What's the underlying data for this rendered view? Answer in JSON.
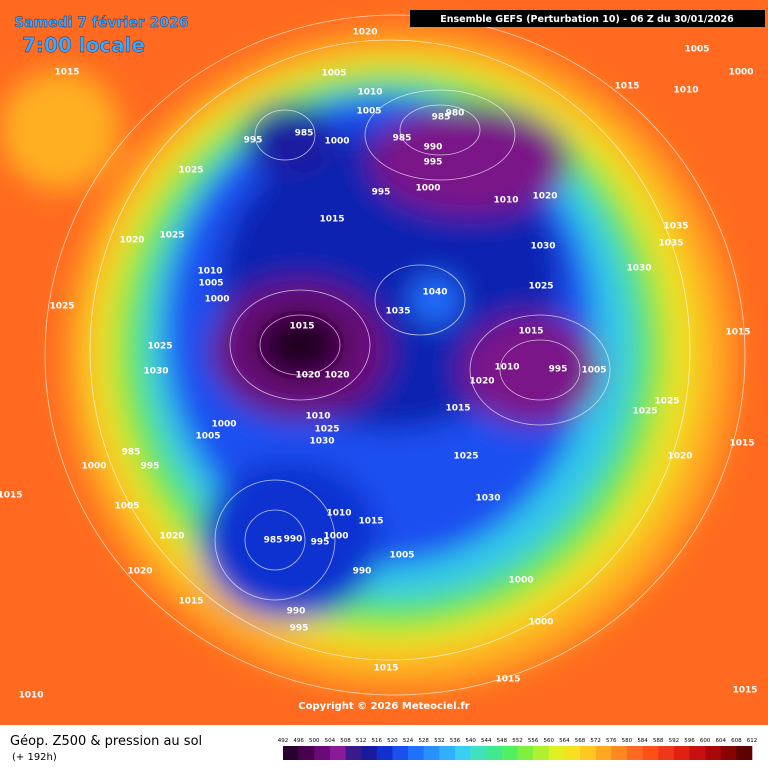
{
  "header": {
    "date": "Samedi 7 février 2026",
    "time": "7:00 locale",
    "run": "Ensemble GEFS  (Perturbation 10)  -  06 Z du 30/01/2026"
  },
  "isobar_labels": [
    "1020",
    "1005",
    "1015",
    "1005",
    "1015",
    "1010",
    "1000",
    "1010",
    "1005",
    "980",
    "985",
    "995",
    "985",
    "985",
    "1000",
    "990",
    "995",
    "1025",
    "995",
    "1000",
    "1010",
    "1020",
    "1020",
    "1025",
    "1015",
    "1035",
    "1035",
    "1030",
    "1010",
    "1005",
    "1030",
    "1000",
    "1025",
    "1040",
    "1025",
    "1035",
    "1015",
    "1015",
    "1025",
    "1030",
    "1020",
    "1020",
    "1010",
    "995",
    "1005",
    "1020",
    "1015",
    "1015",
    "1025",
    "1025",
    "1000",
    "1010",
    "1025",
    "1030",
    "1005",
    "1015",
    "985",
    "995",
    "1000",
    "1025",
    "1020",
    "1015",
    "1030",
    "1005",
    "1010",
    "1015",
    "1020",
    "985",
    "990",
    "1000",
    "995",
    "1005",
    "990",
    "1020",
    "1000",
    "1015",
    "990",
    "995",
    "1000",
    "1015",
    "1015",
    "1010",
    "1015"
  ],
  "copyright": "Copyright © 2026 Meteociel.fr",
  "footer": {
    "title": "Géop. Z500 & pression au sol",
    "subtitle": "(+ 192h)"
  },
  "colorbar": {
    "ticks": [
      492,
      496,
      500,
      504,
      508,
      512,
      516,
      520,
      524,
      528,
      532,
      536,
      540,
      544,
      548,
      552,
      556,
      560,
      564,
      568,
      572,
      576,
      580,
      584,
      588,
      592,
      596,
      600,
      604,
      608,
      612
    ],
    "colors": [
      "#2a0030",
      "#4a0050",
      "#6a0a78",
      "#8a1a9a",
      "#3a1a8a",
      "#1a1aa0",
      "#1030d0",
      "#1a50f0",
      "#2070ff",
      "#2890ff",
      "#30b0ff",
      "#38d0f0",
      "#40e0c0",
      "#40e890",
      "#50f060",
      "#80f040",
      "#b0f030",
      "#e0f020",
      "#f8e020",
      "#ffc820",
      "#ffa820",
      "#ff8820",
      "#ff6a20",
      "#ff5018",
      "#f03818",
      "#e02010",
      "#c81010",
      "#a80808",
      "#880404",
      "#600000"
    ]
  }
}
